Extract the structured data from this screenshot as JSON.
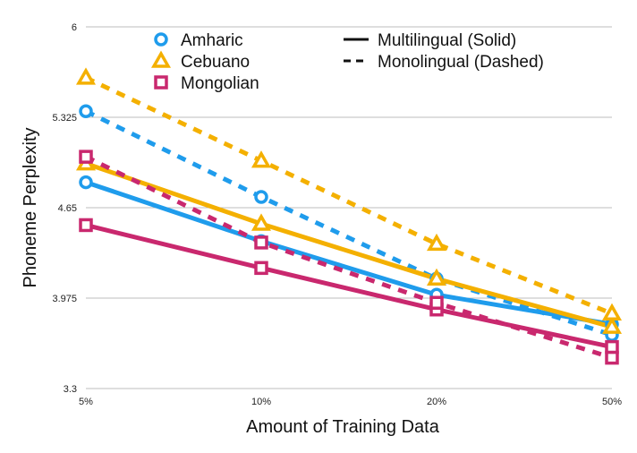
{
  "chart_data": {
    "type": "line",
    "title": "",
    "xlabel": "Amount of Training Data",
    "ylabel": "Phoneme Perplexity",
    "categories": [
      "5%",
      "10%",
      "20%",
      "50%"
    ],
    "yticks": [
      "3.3",
      "3.975",
      "4.65",
      "5.325",
      "6"
    ],
    "ylim": [
      3.3,
      6.0
    ],
    "grid": "horizontal",
    "series": [
      {
        "name": "Amharic",
        "language": "Amharic",
        "mode": "Multilingual",
        "color": "#1f9cec",
        "marker": "circle",
        "values": [
          4.84,
          4.4,
          4.0,
          3.78
        ]
      },
      {
        "name": "Amharic",
        "language": "Amharic",
        "mode": "Monolingual",
        "color": "#1f9cec",
        "marker": "circle",
        "values": [
          5.37,
          4.73,
          4.12,
          3.7
        ]
      },
      {
        "name": "Cebuano",
        "language": "Cebuano",
        "mode": "Multilingual",
        "color": "#f4b000",
        "marker": "triangle",
        "values": [
          4.98,
          4.53,
          4.12,
          3.76
        ]
      },
      {
        "name": "Cebuano",
        "language": "Cebuano",
        "mode": "Monolingual",
        "color": "#f4b000",
        "marker": "triangle",
        "values": [
          5.62,
          5.0,
          4.38,
          3.86
        ]
      },
      {
        "name": "Mongolian",
        "language": "Mongolian",
        "mode": "Multilingual",
        "color": "#c9286e",
        "marker": "square",
        "values": [
          4.52,
          4.2,
          3.89,
          3.61
        ]
      },
      {
        "name": "Mongolian",
        "language": "Mongolian",
        "mode": "Monolingual",
        "color": "#c9286e",
        "marker": "square",
        "values": [
          5.03,
          4.39,
          3.94,
          3.53
        ]
      }
    ],
    "legend": {
      "placement": "top",
      "languages": [
        {
          "label": "Amharic",
          "marker": "circle",
          "color": "#1f9cec"
        },
        {
          "label": "Cebuano",
          "marker": "triangle",
          "color": "#f4b000"
        },
        {
          "label": "Mongolian",
          "marker": "square",
          "color": "#c9286e"
        }
      ],
      "styles": [
        {
          "label": "Multilingual (Solid)",
          "dash": false
        },
        {
          "label": "Monolingual (Dashed)",
          "dash": true
        }
      ]
    }
  }
}
